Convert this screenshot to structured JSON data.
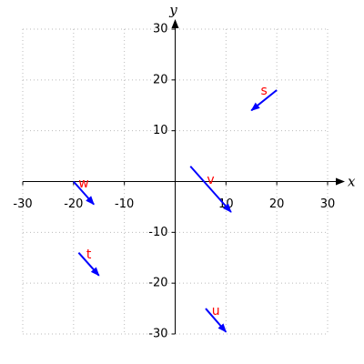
{
  "chart_data": {
    "type": "vector",
    "xlabel": "x",
    "ylabel": "y",
    "xlim": [
      -30,
      30
    ],
    "ylim": [
      -30,
      30
    ],
    "xticks": [
      -30,
      -20,
      -10,
      10,
      20,
      30
    ],
    "yticks": [
      -30,
      -20,
      -10,
      10,
      20,
      30
    ],
    "grid": true,
    "color": "#0000ff",
    "label_color": "#ff0000",
    "vectors": [
      {
        "label": "s",
        "x": 20,
        "y": 18,
        "dx": -5,
        "dy": -4
      },
      {
        "label": "v",
        "x": 3,
        "y": 3,
        "dx": 8,
        "dy": -9
      },
      {
        "label": "w",
        "x": -20,
        "y": 0,
        "dx": 4,
        "dy": -4.5
      },
      {
        "label": "t",
        "x": -19,
        "y": -14,
        "dx": 4,
        "dy": -4.5
      },
      {
        "label": "u",
        "x": 6,
        "y": -25,
        "dx": 4,
        "dy": -4.6
      }
    ]
  }
}
